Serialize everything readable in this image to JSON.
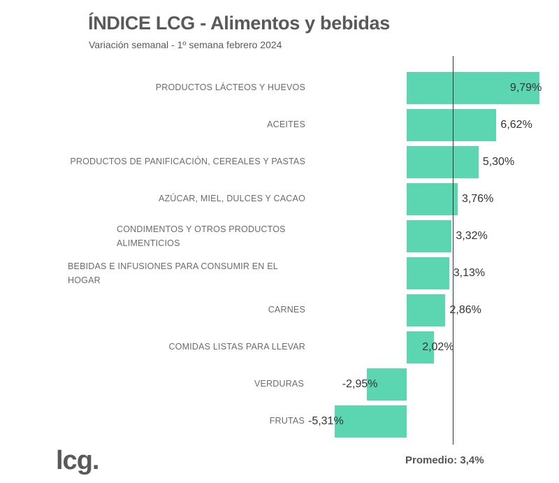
{
  "chart_data": {
    "type": "bar",
    "orientation": "horizontal",
    "title": "ÍNDICE LCG - Alimentos y bebidas",
    "subtitle": "Variación semanal - 1º semana febrero 2024",
    "xlabel": "",
    "ylabel": "",
    "unit": "%",
    "categories": [
      "PRODUCTOS LÁCTEOS Y HUEVOS",
      "ACEITES",
      "PRODUCTOS DE PANIFICACIÓN, CEREALES Y PASTAS",
      "AZÚCAR, MIEL, DULCES Y CACAO",
      "CONDIMENTOS Y OTROS PRODUCTOS ALIMENTICIOS",
      "BEBIDAS E INFUSIONES PARA CONSUMIR EN EL HOGAR",
      "CARNES",
      "COMIDAS LISTAS PARA LLEVAR",
      "VERDURAS",
      "FRUTAS"
    ],
    "values": [
      9.79,
      6.62,
      5.3,
      3.76,
      3.32,
      3.13,
      2.86,
      2.02,
      -2.95,
      -5.31
    ],
    "value_labels": [
      "9,79%",
      "6,62%",
      "5,30%",
      "3,76%",
      "3,32%",
      "3,13%",
      "2,86%",
      "2,02%",
      "-2,95%",
      "-5,31%"
    ],
    "reference_line": {
      "label": "Promedio:",
      "value": 3.4,
      "value_label": "3,4%"
    },
    "grid": false,
    "legend": "none",
    "colors": {
      "bar": "#5BD6B0",
      "reference_line": "#333333"
    }
  },
  "brand": {
    "logo_text": "lcg."
  }
}
